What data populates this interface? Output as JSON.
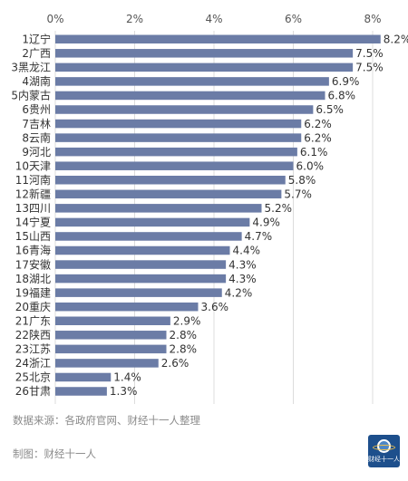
{
  "chart_data": {
    "type": "bar",
    "orientation": "horizontal",
    "categories": [
      "1辽宁",
      "2广西",
      "3黑龙江",
      "4湖南",
      "5内蒙古",
      "6贵州",
      "7吉林",
      "8云南",
      "9河北",
      "10天津",
      "11河南",
      "12新疆",
      "13四川",
      "14宁夏",
      "15山西",
      "16青海",
      "17安徽",
      "18湖北",
      "19福建",
      "20重庆",
      "21广东",
      "22陕西",
      "23江苏",
      "24浙江",
      "25北京",
      "26甘肃"
    ],
    "values": [
      8.2,
      7.5,
      7.5,
      6.9,
      6.8,
      6.5,
      6.2,
      6.2,
      6.1,
      6.0,
      5.8,
      5.7,
      5.2,
      4.9,
      4.7,
      4.4,
      4.3,
      4.3,
      4.2,
      3.6,
      2.9,
      2.8,
      2.8,
      2.6,
      1.4,
      1.3
    ],
    "value_labels": [
      "8.2%",
      "7.5%",
      "7.5%",
      "6.9%",
      "6.8%",
      "6.5%",
      "6.2%",
      "6.2%",
      "6.1%",
      "6.0%",
      "5.8%",
      "5.7%",
      "5.2%",
      "4.9%",
      "4.7%",
      "4.4%",
      "4.3%",
      "4.3%",
      "4.2%",
      "3.6%",
      "2.9%",
      "2.8%",
      "2.8%",
      "2.6%",
      "1.4%",
      "1.3%"
    ],
    "x_ticks": [
      0,
      2,
      4,
      6,
      8
    ],
    "x_tick_labels": [
      "0%",
      "2%",
      "4%",
      "6%",
      "8%"
    ],
    "xlim": [
      0,
      8.8
    ],
    "x_axis_position": "top",
    "grid": true,
    "bar_color": "#6b7ca6"
  },
  "footer": {
    "source": "数据来源：各政府官网、财经十一人整理",
    "credit": "制图：财经十一人"
  },
  "logo": {
    "text": "财经十一人"
  }
}
